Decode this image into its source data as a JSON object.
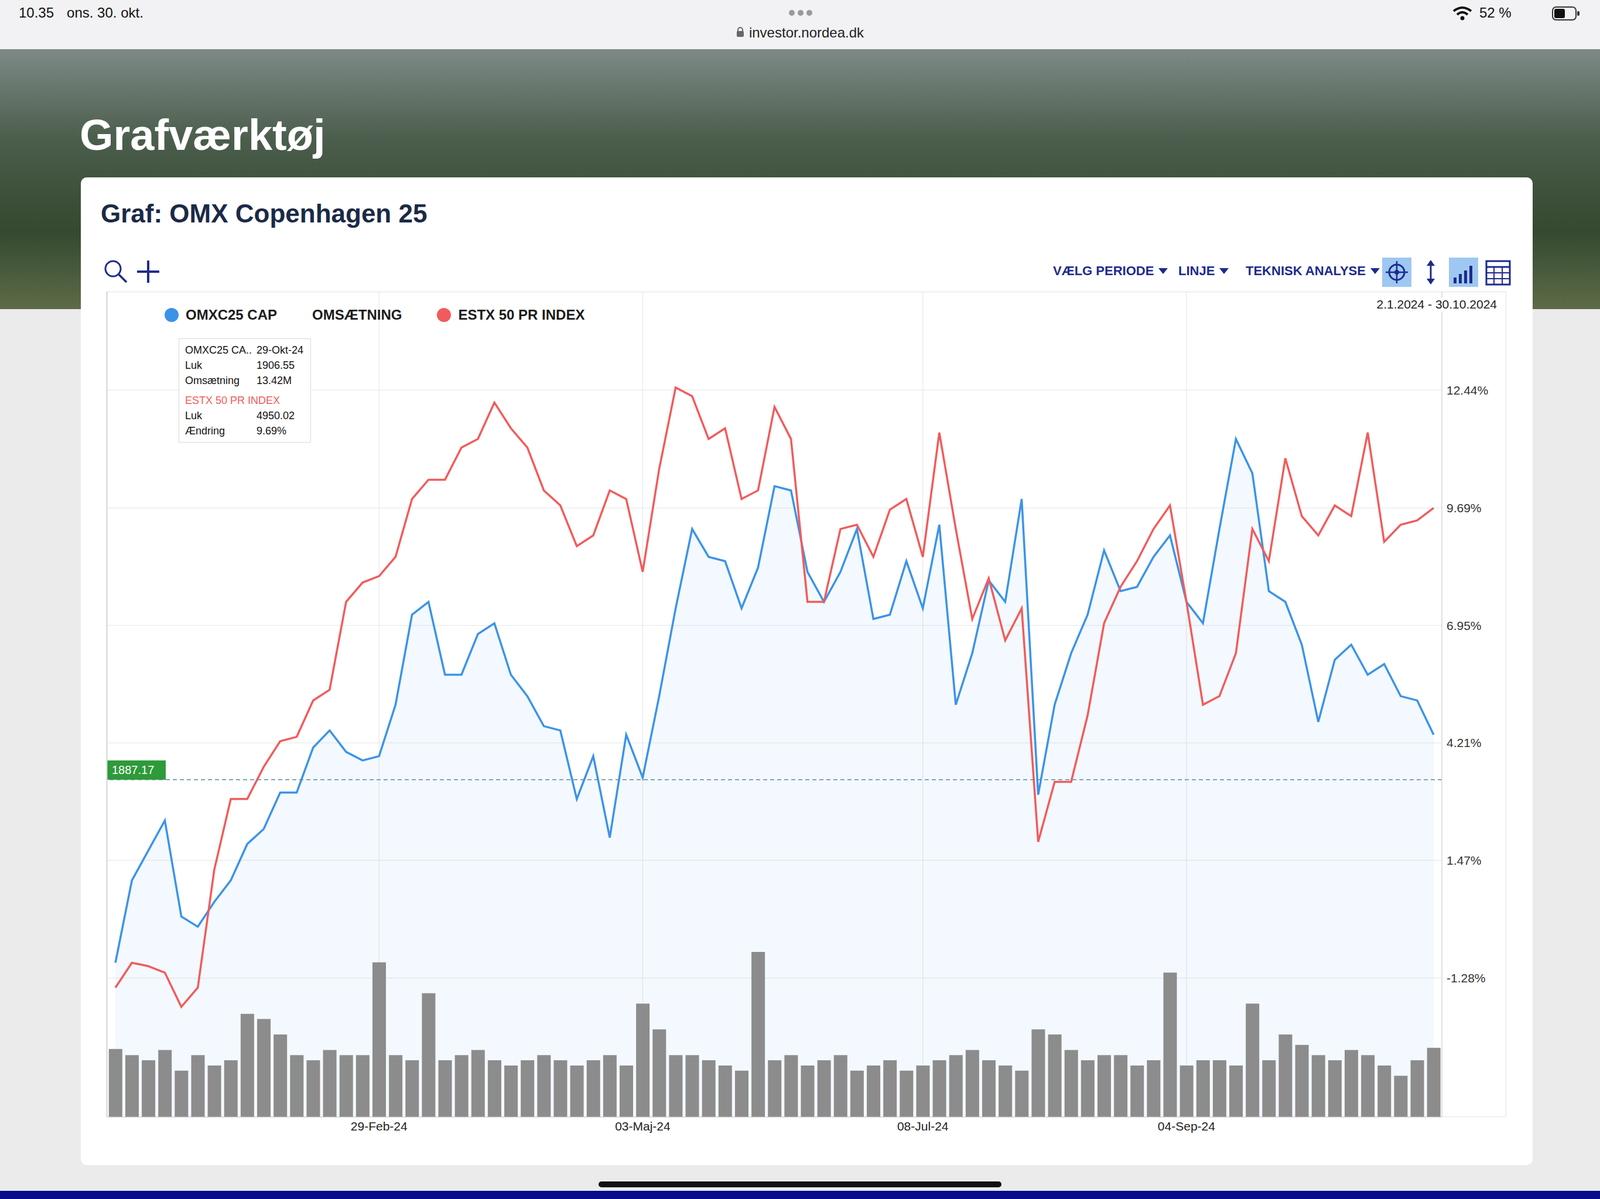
{
  "status_bar": {
    "time": "10.35",
    "date": "ons. 30. okt.",
    "url": "investor.nordea.dk",
    "battery": "52 %"
  },
  "page": {
    "heading": "Grafværktøj",
    "card_title": "Graf: OMX Copenhagen 25",
    "toolbar": [
      "VÆLG PERIODE",
      "LINJE",
      "TEKNISK ANALYSE"
    ],
    "period": "2.1.2024 - 30.10.2024",
    "tooltip": [
      {
        "title": [
          "OMXC25 CA..",
          "29-Okt-24"
        ],
        "rows": [
          [
            "Luk",
            "1906.55"
          ],
          [
            "Omsætning",
            "13.42M"
          ]
        ]
      },
      {
        "title": [
          "ESTX 50 PR INDEX"
        ],
        "rows": [
          [
            "Luk",
            "4950.02"
          ],
          [
            "Ændring",
            "9.69%"
          ]
        ]
      }
    ]
  },
  "chart_data": {
    "type": "line",
    "legend": "top-left",
    "grid": true,
    "categories": [
      null,
      null,
      null,
      null,
      null,
      null,
      null,
      null,
      null,
      null,
      null,
      null,
      null,
      null,
      null,
      null,
      "29-Feb-24",
      null,
      null,
      null,
      null,
      null,
      null,
      null,
      null,
      null,
      null,
      null,
      null,
      null,
      null,
      null,
      "03-Maj-24",
      null,
      null,
      null,
      null,
      null,
      null,
      null,
      null,
      null,
      null,
      null,
      null,
      null,
      null,
      null,
      null,
      "08-Jul-24",
      null,
      null,
      null,
      null,
      null,
      null,
      null,
      null,
      null,
      null,
      null,
      null,
      null,
      null,
      null,
      "04-Sep-24",
      null,
      null,
      null,
      null,
      null,
      null,
      null,
      null,
      null,
      null,
      null,
      null,
      null,
      null,
      null
    ],
    "ylim": [
      -4.52,
      14.74
    ],
    "yticks": [
      {
        "value": 12.44,
        "label": "12.44%"
      },
      {
        "value": 9.69,
        "label": "9.69%"
      },
      {
        "value": 6.95,
        "label": "6.95%"
      },
      {
        "value": 4.21,
        "label": "4.21%"
      },
      {
        "value": 1.47,
        "label": "1.47%"
      },
      {
        "value": -1.28,
        "label": "-1.28%"
      }
    ],
    "y2lim": [
      0,
      160
    ],
    "y2ticks": [],
    "annotations": [
      {
        "y": 3.35,
        "text": "1887.17"
      }
    ],
    "series": [
      {
        "name": "OMXC25 CAP",
        "type": "area",
        "color": "#3b93e8",
        "values": [
          -0.92,
          1.0,
          1.7,
          2.4,
          0.16,
          -0.08,
          0.5,
          1.0,
          1.85,
          2.2,
          3.05,
          3.05,
          4.1,
          4.5,
          4.0,
          3.8,
          3.9,
          5.1,
          7.2,
          7.5,
          5.8,
          5.8,
          6.75,
          7.0,
          5.8,
          5.3,
          4.6,
          4.5,
          2.9,
          3.9,
          2.0,
          4.4,
          3.4,
          5.3,
          7.35,
          9.2,
          8.55,
          8.45,
          7.35,
          8.3,
          10.2,
          10.1,
          8.2,
          7.5,
          8.2,
          9.2,
          7.1,
          7.2,
          8.45,
          7.35,
          9.3,
          5.1,
          6.3,
          8.0,
          7.5,
          9.9,
          3.0,
          5.1,
          6.3,
          7.2,
          8.7,
          7.75,
          7.85,
          8.55,
          9.05,
          7.5,
          7.0,
          9.2,
          11.3,
          10.5,
          7.75,
          7.5,
          6.5,
          4.7,
          6.15,
          6.5,
          5.8,
          6.05,
          5.3,
          5.2,
          4.4
        ]
      },
      {
        "name": "OMSÆTNING",
        "type": "bar",
        "axis": "y2",
        "color": "#8c8c8c",
        "values": [
          13.2,
          12,
          11,
          13,
          9,
          12,
          10,
          11,
          20,
          19,
          16,
          12,
          11,
          13,
          12,
          12,
          30,
          12,
          11,
          24,
          11,
          12,
          13,
          11,
          10,
          11,
          12,
          11,
          10,
          11,
          12,
          10,
          22,
          17,
          12,
          12,
          11,
          10,
          9,
          32,
          11,
          12,
          10,
          11,
          12,
          9,
          10,
          11,
          9,
          10,
          11,
          12,
          13,
          11,
          10,
          9,
          17,
          16,
          13,
          11,
          12,
          12,
          10,
          11,
          28,
          10,
          11,
          11,
          10,
          22,
          11,
          16,
          14,
          12,
          11,
          13,
          12,
          10,
          8,
          11,
          13.42
        ]
      },
      {
        "name": "ESTX 50 PR INDEX",
        "type": "line",
        "color": "#f25b5b",
        "values": [
          -1.5,
          -0.92,
          -1.0,
          -1.15,
          -1.95,
          -1.5,
          1.25,
          2.9,
          2.9,
          3.65,
          4.25,
          4.35,
          5.2,
          5.45,
          7.5,
          7.95,
          8.1,
          8.55,
          9.9,
          10.35,
          10.35,
          11.1,
          11.3,
          12.15,
          11.55,
          11.1,
          10.1,
          9.75,
          8.8,
          9.05,
          10.1,
          9.9,
          8.2,
          10.6,
          12.5,
          12.3,
          11.3,
          11.55,
          9.9,
          10.1,
          12.05,
          11.3,
          7.5,
          7.5,
          9.2,
          9.3,
          8.55,
          9.65,
          9.9,
          8.55,
          11.45,
          9.2,
          7.1,
          8.05,
          6.6,
          7.35,
          1.9,
          3.3,
          3.3,
          4.85,
          7.0,
          7.85,
          8.45,
          9.2,
          9.75,
          7.5,
          5.1,
          5.3,
          6.3,
          9.2,
          8.45,
          10.85,
          9.5,
          9.05,
          9.75,
          9.5,
          11.45,
          8.9,
          9.3,
          9.4,
          9.69
        ]
      }
    ]
  }
}
